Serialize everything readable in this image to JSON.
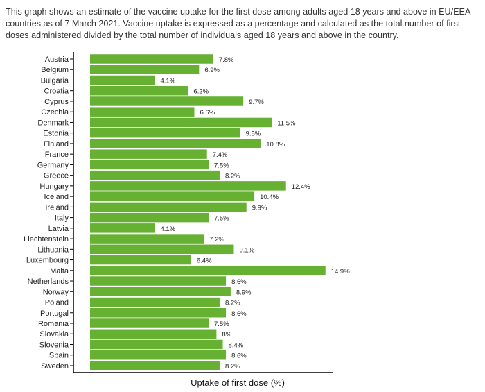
{
  "description": "This graph shows an estimate of the vaccine uptake for the first dose among adults aged 18 years and above in EU/EEA countries as of 7 March 2021. Vaccine uptake is expressed as a percentage and calculated as the total number of first doses administered divided by the total number of individuals aged 18 years and above in the country.",
  "chart_data": {
    "type": "bar",
    "orientation": "horizontal",
    "title": "",
    "xlabel": "Uptake of first dose (%)",
    "ylabel": "",
    "bar_color": "#66b132",
    "categories": [
      "Austria",
      "Belgium",
      "Bulgaria",
      "Croatia",
      "Cyprus",
      "Czechia",
      "Denmark",
      "Estonia",
      "Finland",
      "France",
      "Germany",
      "Greece",
      "Hungary",
      "Iceland",
      "Ireland",
      "Italy",
      "Latvia",
      "Liechtenstein",
      "Lithuania",
      "Luxembourg",
      "Malta",
      "Netherlands",
      "Norway",
      "Poland",
      "Portugal",
      "Romania",
      "Slovakia",
      "Slovenia",
      "Spain",
      "Sweden"
    ],
    "values": [
      7.8,
      6.9,
      4.1,
      6.2,
      9.7,
      6.6,
      11.5,
      9.5,
      10.8,
      7.4,
      7.5,
      8.2,
      12.4,
      10.4,
      9.9,
      7.5,
      4.1,
      7.2,
      9.1,
      6.4,
      14.9,
      8.6,
      8.9,
      8.2,
      8.6,
      7.5,
      8,
      8.4,
      8.6,
      8.2
    ],
    "value_labels": [
      "7.8%",
      "6.9%",
      "4.1%",
      "6.2%",
      "9.7%",
      "6.6%",
      "11.5%",
      "9.5%",
      "10.8%",
      "7.4%",
      "7.5%",
      "8.2%",
      "12.4%",
      "10.4%",
      "9.9%",
      "7.5%",
      "4.1%",
      "7.2%",
      "9.1%",
      "6.4%",
      "14.9%",
      "8.6%",
      "8.9%",
      "8.2%",
      "8.6%",
      "7.5%",
      "8%",
      "8.4%",
      "8.6%",
      "8.2%"
    ],
    "xlim": [
      0,
      16
    ],
    "grid": false,
    "legend": "none"
  }
}
